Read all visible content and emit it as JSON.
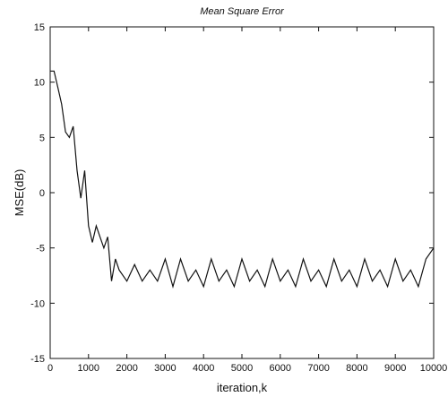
{
  "chart_data": {
    "type": "line",
    "title": "Mean Square Error",
    "xlabel": "iteration,k",
    "ylabel": "MSE(dB)",
    "xlim": [
      0,
      10000
    ],
    "ylim": [
      -15,
      15
    ],
    "x_ticks": [
      0,
      1000,
      2000,
      3000,
      4000,
      5000,
      6000,
      7000,
      8000,
      9000,
      10000
    ],
    "y_ticks": [
      15,
      10,
      5,
      0,
      -5,
      -10,
      -15
    ],
    "grid": false,
    "legend": "none",
    "line_color": "#111111",
    "series": [
      {
        "x": [
          0,
          100,
          200,
          300,
          400,
          500,
          600,
          700,
          800,
          900,
          1000,
          1100,
          1200,
          1300,
          1400,
          1500,
          1600,
          1700,
          1800,
          2000,
          2200,
          2400,
          2600,
          2800,
          3000,
          3200,
          3400,
          3600,
          3800,
          4000,
          4200,
          4400,
          4600,
          4800,
          5000,
          5200,
          5400,
          5600,
          5800,
          6000,
          6200,
          6400,
          6600,
          6800,
          7000,
          7200,
          7400,
          7600,
          7800,
          8000,
          8200,
          8400,
          8600,
          8800,
          9000,
          9200,
          9400,
          9600,
          9800,
          10000
        ],
        "y": [
          11,
          11,
          9.5,
          8,
          5.5,
          5,
          6,
          2,
          -0.5,
          2,
          -3,
          -4.5,
          -3,
          -4,
          -5,
          -4,
          -8,
          -6,
          -7,
          -8,
          -6.5,
          -8,
          -7,
          -8,
          -6,
          -8.5,
          -6,
          -8,
          -7,
          -8.5,
          -6,
          -8,
          -7,
          -8.5,
          -6,
          -8,
          -7,
          -8.5,
          -6,
          -8,
          -7,
          -8.5,
          -6,
          -8,
          -7,
          -8.5,
          -6,
          -8,
          -7,
          -8.5,
          -6,
          -8,
          -7,
          -8.5,
          -6,
          -8,
          -7,
          -8.5,
          -6,
          -5
        ]
      }
    ]
  }
}
